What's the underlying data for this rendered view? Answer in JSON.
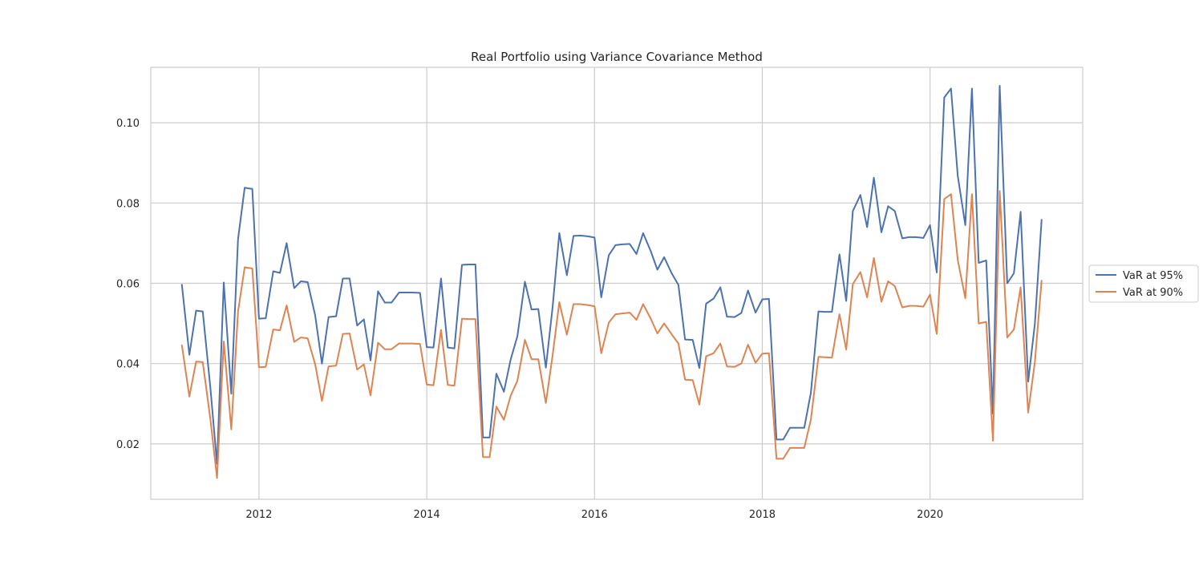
{
  "chart_data": {
    "type": "line",
    "title": "Real Portfolio using Variance Covariance Method",
    "xlabel": "",
    "ylabel": "",
    "xlim": [
      2010.71,
      2021.82
    ],
    "ylim": [
      0.0062,
      0.1138
    ],
    "xticks": [
      2012,
      2014,
      2016,
      2018,
      2020
    ],
    "xtick_labels": [
      "2012",
      "2014",
      "2016",
      "2018",
      "2020"
    ],
    "yticks": [
      0.02,
      0.04,
      0.06,
      0.08,
      0.1
    ],
    "ytick_labels": [
      "0.02",
      "0.04",
      "0.06",
      "0.08",
      "0.10"
    ],
    "grid": true,
    "legend_position": "center-right outside",
    "x": [
      2011.08,
      2011.17,
      2011.25,
      2011.33,
      2011.42,
      2011.5,
      2011.58,
      2011.67,
      2011.75,
      2011.83,
      2011.92,
      2012.0,
      2012.08,
      2012.17,
      2012.25,
      2012.33,
      2012.42,
      2012.5,
      2012.58,
      2012.67,
      2012.75,
      2012.83,
      2012.92,
      2013.0,
      2013.08,
      2013.17,
      2013.25,
      2013.33,
      2013.42,
      2013.5,
      2013.58,
      2013.67,
      2013.75,
      2013.83,
      2013.92,
      2014.0,
      2014.08,
      2014.17,
      2014.25,
      2014.33,
      2014.42,
      2014.5,
      2014.58,
      2014.67,
      2014.75,
      2014.83,
      2014.92,
      2015.0,
      2015.08,
      2015.17,
      2015.25,
      2015.33,
      2015.42,
      2015.5,
      2015.58,
      2015.67,
      2015.75,
      2015.83,
      2015.92,
      2016.0,
      2016.08,
      2016.17,
      2016.25,
      2016.33,
      2016.42,
      2016.5,
      2016.58,
      2016.67,
      2016.75,
      2016.83,
      2016.92,
      2017.0,
      2017.08,
      2017.17,
      2017.25,
      2017.33,
      2017.42,
      2017.5,
      2017.58,
      2017.67,
      2017.75,
      2017.83,
      2017.92,
      2018.0,
      2018.08,
      2018.17,
      2018.25,
      2018.33,
      2018.42,
      2018.5,
      2018.58,
      2018.67,
      2018.75,
      2018.83,
      2018.92,
      2019.0,
      2019.08,
      2019.17,
      2019.25,
      2019.33,
      2019.42,
      2019.5,
      2019.58,
      2019.67,
      2019.75,
      2019.83,
      2019.92,
      2020.0,
      2020.08,
      2020.17,
      2020.25,
      2020.33,
      2020.42,
      2020.5,
      2020.58,
      2020.67,
      2020.75,
      2020.83,
      2020.92,
      2021.0,
      2021.08,
      2021.17,
      2021.25,
      2021.33
    ],
    "series": [
      {
        "name": "VaR at 95%",
        "color": "#4c72b0",
        "values": [
          0.0598,
          0.0422,
          0.0532,
          0.053,
          0.034,
          0.015,
          0.0602,
          0.0325,
          0.071,
          0.0838,
          0.0835,
          0.0512,
          0.0513,
          0.063,
          0.0626,
          0.07,
          0.0588,
          0.0605,
          0.0603,
          0.052,
          0.04,
          0.0516,
          0.0518,
          0.0612,
          0.0612,
          0.0495,
          0.051,
          0.0408,
          0.058,
          0.0552,
          0.0552,
          0.0577,
          0.0577,
          0.0577,
          0.0576,
          0.0441,
          0.044,
          0.0612,
          0.044,
          0.0438,
          0.0646,
          0.0647,
          0.0647,
          0.0216,
          0.0216,
          0.0375,
          0.033,
          0.041,
          0.0468,
          0.0604,
          0.0535,
          0.0536,
          0.039,
          0.054,
          0.0725,
          0.062,
          0.0718,
          0.0719,
          0.0717,
          0.0714,
          0.0565,
          0.067,
          0.0695,
          0.0697,
          0.0698,
          0.0673,
          0.0725,
          0.068,
          0.0634,
          0.0665,
          0.0625,
          0.0596,
          0.046,
          0.0459,
          0.0389,
          0.0549,
          0.0562,
          0.059,
          0.0517,
          0.0516,
          0.0526,
          0.0582,
          0.0527,
          0.056,
          0.0561,
          0.0211,
          0.0211,
          0.024,
          0.024,
          0.024,
          0.0328,
          0.053,
          0.0529,
          0.0529,
          0.0672,
          0.0556,
          0.078,
          0.082,
          0.074,
          0.0863,
          0.0727,
          0.0792,
          0.078,
          0.0712,
          0.0715,
          0.0715,
          0.0713,
          0.0745,
          0.0627,
          0.1063,
          0.1085,
          0.0868,
          0.0745,
          0.1085,
          0.0651,
          0.0657,
          0.0275,
          0.1092,
          0.06,
          0.0625,
          0.0778,
          0.0355,
          0.05,
          0.076
        ]
      },
      {
        "name": "VaR at 90%",
        "color": "#dd8452",
        "values": [
          0.0447,
          0.0318,
          0.0405,
          0.0404,
          0.0262,
          0.0115,
          0.0455,
          0.0236,
          0.053,
          0.064,
          0.0637,
          0.0391,
          0.0392,
          0.0485,
          0.0483,
          0.0545,
          0.0454,
          0.0465,
          0.0463,
          0.0398,
          0.0307,
          0.0393,
          0.0395,
          0.0474,
          0.0475,
          0.0385,
          0.0398,
          0.0321,
          0.0452,
          0.0436,
          0.0436,
          0.045,
          0.045,
          0.045,
          0.0449,
          0.0348,
          0.0346,
          0.0484,
          0.0347,
          0.0345,
          0.0512,
          0.0511,
          0.0511,
          0.0167,
          0.0167,
          0.0293,
          0.026,
          0.032,
          0.0357,
          0.0459,
          0.0411,
          0.0411,
          0.0302,
          0.042,
          0.0553,
          0.0472,
          0.0548,
          0.0548,
          0.0546,
          0.0543,
          0.0426,
          0.0502,
          0.0523,
          0.0525,
          0.0527,
          0.0509,
          0.0548,
          0.0512,
          0.0475,
          0.05,
          0.0473,
          0.045,
          0.036,
          0.0359,
          0.0298,
          0.0418,
          0.0426,
          0.045,
          0.0393,
          0.0392,
          0.04,
          0.0447,
          0.0402,
          0.0425,
          0.0426,
          0.0163,
          0.0163,
          0.019,
          0.019,
          0.019,
          0.0261,
          0.0417,
          0.0416,
          0.0415,
          0.0523,
          0.0435,
          0.0598,
          0.0628,
          0.0565,
          0.0663,
          0.0554,
          0.0605,
          0.0593,
          0.054,
          0.0544,
          0.0544,
          0.0542,
          0.0572,
          0.0474,
          0.081,
          0.0822,
          0.0658,
          0.0563,
          0.0822,
          0.05,
          0.0504,
          0.0208,
          0.083,
          0.0465,
          0.0485,
          0.059,
          0.0278,
          0.0405,
          0.0608
        ]
      }
    ]
  }
}
